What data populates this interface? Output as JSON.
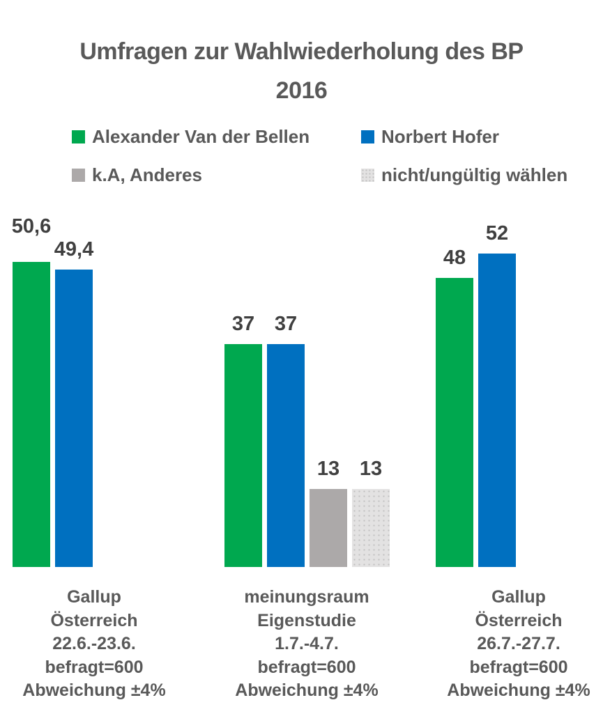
{
  "chart_data": {
    "type": "bar",
    "title": "Umfragen zur Wahlwiederholung des BP 2016",
    "title_lines": [
      "Umfragen zur Wahlwiederholung des BP",
      "2016"
    ],
    "legend_position": "top",
    "axes_visible": false,
    "text_colors": {
      "title": "#595959",
      "value_labels": "#404040",
      "category_labels": "#595959"
    },
    "series": [
      {
        "name": "Alexander Van der Bellen",
        "color": "#00A84F",
        "values": [
          50.6,
          37,
          48
        ]
      },
      {
        "name": "Norbert Hofer",
        "color": "#0070C0",
        "values": [
          49.4,
          37,
          52
        ]
      },
      {
        "name": "k.A, Anderes",
        "color": "#ACA9A9",
        "values": [
          null,
          13,
          null
        ]
      },
      {
        "name": "nicht/ungültig wählen",
        "color": "#E3E2E2",
        "pattern": "dotted",
        "values": [
          null,
          13,
          null
        ]
      }
    ],
    "groups": [
      {
        "label": "Gallup Österreich 22.6.-23.6. befragt=600 Abweichung ±4%",
        "label_lines": [
          "Gallup",
          "Österreich",
          "22.6.-23.6.",
          "befragt=600",
          "Abweichung ±4%"
        ],
        "bars": [
          {
            "series": "Alexander Van der Bellen",
            "value": 50.6,
            "label": "50,6"
          },
          {
            "series": "Norbert Hofer",
            "value": 49.4,
            "label": "49,4"
          }
        ]
      },
      {
        "label": "meinungsraum Eigenstudie 1.7.-4.7. befragt=600 Abweichung ±4%",
        "label_lines": [
          "meinungsraum",
          "Eigenstudie",
          "1.7.-4.7.",
          "befragt=600",
          "Abweichung ±4%"
        ],
        "bars": [
          {
            "series": "Alexander Van der Bellen",
            "value": 37,
            "label": "37"
          },
          {
            "series": "Norbert Hofer",
            "value": 37,
            "label": "37"
          },
          {
            "series": "k.A, Anderes",
            "value": 13,
            "label": "13"
          },
          {
            "series": "nicht/ungültig wählen",
            "value": 13,
            "label": "13"
          }
        ]
      },
      {
        "label": "Gallup Österreich 26.7.-27.7. befragt=600 Abweichung ±4%",
        "label_lines": [
          "Gallup",
          "Österreich",
          "26.7.-27.7.",
          "befragt=600",
          "Abweichung ±4%"
        ],
        "bars": [
          {
            "series": "Alexander Van der Bellen",
            "value": 48,
            "label": "48"
          },
          {
            "series": "Norbert Hofer",
            "value": 52,
            "label": "52"
          }
        ]
      }
    ]
  }
}
